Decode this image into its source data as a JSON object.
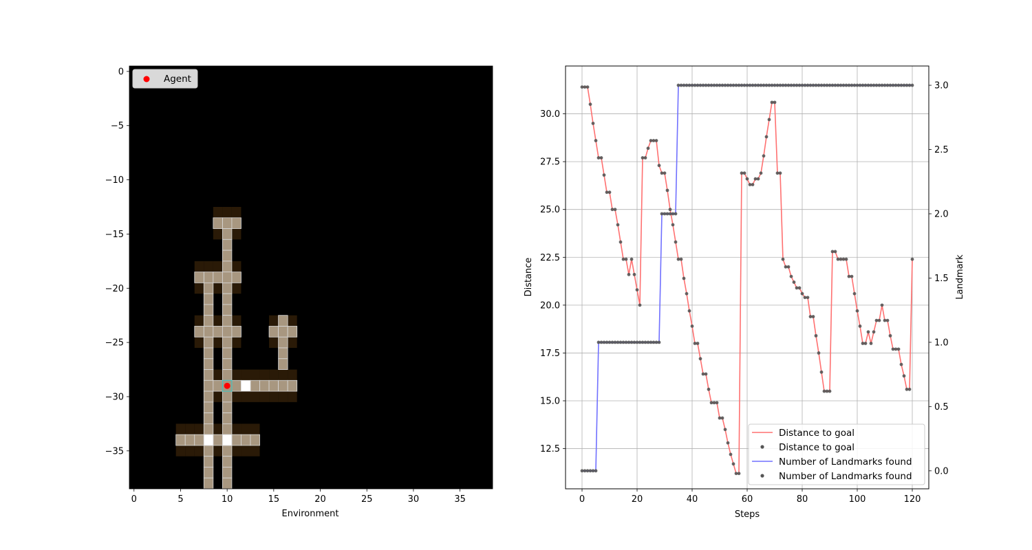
{
  "chart_data": [
    {
      "type": "heatmap",
      "xlabel": "Environment",
      "ylabel": "",
      "xlim": [
        -0.5,
        38.5
      ],
      "ylim": [
        -38.5,
        0.5
      ],
      "xticks": [
        0,
        5,
        10,
        15,
        20,
        25,
        30,
        35
      ],
      "yticks": [
        0,
        -5,
        -10,
        -15,
        -20,
        -25,
        -30,
        -35
      ],
      "xtick_labels": [
        "0",
        "5",
        "10",
        "15",
        "20",
        "25",
        "30",
        "35"
      ],
      "ytick_labels": [
        "0",
        "−5",
        "−10",
        "−15",
        "−20",
        "−25",
        "−30",
        "−35"
      ],
      "grid_color": "#d9d9d9",
      "background_color": "#000000",
      "level_colors": {
        "1": "#2a1a07",
        "2": "#a89780",
        "3": "#ffffff"
      },
      "cells": {
        "dark": [
          [
            9,
            13
          ],
          [
            10,
            13
          ],
          [
            11,
            13
          ],
          [
            9,
            15
          ],
          [
            11,
            15
          ],
          [
            7,
            18
          ],
          [
            8,
            18
          ],
          [
            9,
            18
          ],
          [
            11,
            18
          ],
          [
            7,
            20
          ],
          [
            9,
            20
          ],
          [
            11,
            20
          ],
          [
            7,
            23
          ],
          [
            8,
            23
          ],
          [
            9,
            23
          ],
          [
            11,
            23
          ],
          [
            7,
            25
          ],
          [
            9,
            25
          ],
          [
            11,
            25
          ],
          [
            15,
            23
          ],
          [
            17,
            23
          ],
          [
            15,
            25
          ],
          [
            17,
            25
          ],
          [
            9,
            28
          ],
          [
            11,
            28
          ],
          [
            12,
            28
          ],
          [
            13,
            28
          ],
          [
            14,
            28
          ],
          [
            15,
            28
          ],
          [
            16,
            28
          ],
          [
            17,
            28
          ],
          [
            9,
            30
          ],
          [
            11,
            30
          ],
          [
            12,
            30
          ],
          [
            13,
            30
          ],
          [
            14,
            30
          ],
          [
            15,
            30
          ],
          [
            16,
            30
          ],
          [
            17,
            30
          ],
          [
            5,
            33
          ],
          [
            6,
            33
          ],
          [
            7,
            33
          ],
          [
            9,
            33
          ],
          [
            11,
            33
          ],
          [
            12,
            33
          ],
          [
            13,
            33
          ],
          [
            5,
            35
          ],
          [
            6,
            35
          ],
          [
            7,
            35
          ],
          [
            9,
            35
          ],
          [
            11,
            35
          ],
          [
            12,
            35
          ],
          [
            13,
            35
          ]
        ],
        "path": [
          [
            10,
            14
          ],
          [
            11,
            14
          ],
          [
            9,
            14
          ],
          [
            10,
            15
          ],
          [
            10,
            16
          ],
          [
            10,
            17
          ],
          [
            8,
            19
          ],
          [
            9,
            19
          ],
          [
            10,
            19
          ],
          [
            11,
            19
          ],
          [
            7,
            19
          ],
          [
            10,
            18
          ],
          [
            8,
            20
          ],
          [
            10,
            20
          ],
          [
            8,
            21
          ],
          [
            10,
            21
          ],
          [
            8,
            22
          ],
          [
            10,
            22
          ],
          [
            7,
            24
          ],
          [
            8,
            24
          ],
          [
            9,
            24
          ],
          [
            10,
            24
          ],
          [
            11,
            24
          ],
          [
            8,
            23
          ],
          [
            10,
            23
          ],
          [
            8,
            25
          ],
          [
            10,
            25
          ],
          [
            15,
            24
          ],
          [
            16,
            24
          ],
          [
            17,
            24
          ],
          [
            16,
            23
          ],
          [
            16,
            25
          ],
          [
            16,
            26
          ],
          [
            16,
            27
          ],
          [
            8,
            26
          ],
          [
            10,
            26
          ],
          [
            8,
            27
          ],
          [
            10,
            27
          ],
          [
            8,
            28
          ],
          [
            10,
            28
          ],
          [
            8,
            29
          ],
          [
            9,
            29
          ],
          [
            11,
            29
          ],
          [
            13,
            29
          ],
          [
            14,
            29
          ],
          [
            15,
            29
          ],
          [
            16,
            29
          ],
          [
            17,
            29
          ],
          [
            8,
            30
          ],
          [
            10,
            30
          ],
          [
            8,
            31
          ],
          [
            10,
            31
          ],
          [
            8,
            32
          ],
          [
            10,
            32
          ],
          [
            8,
            33
          ],
          [
            10,
            33
          ],
          [
            5,
            34
          ],
          [
            6,
            34
          ],
          [
            7,
            34
          ],
          [
            9,
            34
          ],
          [
            11,
            34
          ],
          [
            12,
            34
          ],
          [
            13,
            34
          ],
          [
            8,
            35
          ],
          [
            10,
            35
          ],
          [
            8,
            36
          ],
          [
            10,
            36
          ],
          [
            8,
            37
          ],
          [
            10,
            37
          ],
          [
            8,
            38
          ],
          [
            10,
            38
          ]
        ],
        "bright": [
          [
            12,
            29
          ],
          [
            8,
            34
          ],
          [
            10,
            34
          ]
        ],
        "agent_cell": [
          10,
          29
        ]
      },
      "agent": {
        "x": 10,
        "y": -29,
        "color": "#ff0000"
      },
      "legend": {
        "placement": "upper-left",
        "entries": [
          {
            "label": "Agent",
            "marker": "circle",
            "color": "#ff0000"
          }
        ]
      }
    },
    {
      "type": "line",
      "title": "",
      "xlabel": "Steps",
      "ylabel": "Distance",
      "y2label": "Landmark",
      "xlim": [
        -6,
        126
      ],
      "ylim": [
        10.4,
        32.5
      ],
      "y2lim": [
        -0.14,
        3.15
      ],
      "xticks": [
        0,
        20,
        40,
        60,
        80,
        100,
        120
      ],
      "yticks": [
        12.5,
        15.0,
        17.5,
        20.0,
        22.5,
        25.0,
        27.5,
        30.0
      ],
      "y2ticks": [
        0.0,
        0.5,
        1.0,
        1.5,
        2.0,
        2.5,
        3.0
      ],
      "xtick_labels": [
        "0",
        "20",
        "40",
        "60",
        "80",
        "100",
        "120"
      ],
      "ytick_labels": [
        "12.5",
        "15.0",
        "17.5",
        "20.0",
        "22.5",
        "25.0",
        "27.5",
        "30.0"
      ],
      "y2tick_labels": [
        "0.0",
        "0.5",
        "1.0",
        "1.5",
        "2.0",
        "2.5",
        "3.0"
      ],
      "grid": true,
      "legend_placement": "lower-right",
      "series": [
        {
          "name": "Distance to goal",
          "axis": "left",
          "line_color": "#ff7070",
          "marker_color": "#555555",
          "x": [
            0,
            1,
            2,
            3,
            4,
            5,
            6,
            7,
            8,
            9,
            10,
            11,
            12,
            13,
            14,
            15,
            16,
            17,
            18,
            19,
            20,
            21,
            22,
            23,
            24,
            25,
            26,
            27,
            28,
            29,
            30,
            31,
            32,
            33,
            34,
            35,
            36,
            37,
            38,
            39,
            40,
            41,
            42,
            43,
            44,
            45,
            46,
            47,
            48,
            49,
            50,
            51,
            52,
            53,
            54,
            55,
            56,
            57,
            58,
            59,
            60,
            61,
            62,
            63,
            64,
            65,
            66,
            67,
            68,
            69,
            70,
            71,
            72,
            73,
            74,
            75,
            76,
            77,
            78,
            79,
            80,
            81,
            82,
            83,
            84,
            85,
            86,
            87,
            88,
            89,
            90,
            91,
            92,
            93,
            94,
            95,
            96,
            97,
            98,
            99,
            100,
            101,
            102,
            103,
            104,
            105,
            106,
            107,
            108,
            109,
            110,
            111,
            112,
            113,
            114,
            115,
            116,
            117,
            118,
            119,
            120
          ],
          "y": [
            31.4,
            31.4,
            31.4,
            30.5,
            29.5,
            28.6,
            27.7,
            27.7,
            26.8,
            25.9,
            25.9,
            25.0,
            25.0,
            24.2,
            23.3,
            22.4,
            22.4,
            21.6,
            22.4,
            21.6,
            20.8,
            20.0,
            27.7,
            27.7,
            28.2,
            28.6,
            28.6,
            28.6,
            27.3,
            26.9,
            26.9,
            26.0,
            25.0,
            24.2,
            23.3,
            22.4,
            22.4,
            21.4,
            20.6,
            19.7,
            18.9,
            18.0,
            18.0,
            17.2,
            16.4,
            16.4,
            15.6,
            14.9,
            14.9,
            14.9,
            14.1,
            14.1,
            13.5,
            12.8,
            12.2,
            11.7,
            11.2,
            11.2,
            26.9,
            26.9,
            26.6,
            26.3,
            26.3,
            26.6,
            26.6,
            26.9,
            27.8,
            28.8,
            29.7,
            30.6,
            30.6,
            26.9,
            26.9,
            22.4,
            22.0,
            22.0,
            21.5,
            21.2,
            20.9,
            20.9,
            20.6,
            20.4,
            20.4,
            19.4,
            19.4,
            18.4,
            17.5,
            16.5,
            15.5,
            15.5,
            15.5,
            22.8,
            22.8,
            22.4,
            22.4,
            22.4,
            22.4,
            21.5,
            21.5,
            20.6,
            19.7,
            18.9,
            18.0,
            18.0,
            18.6,
            18.0,
            18.6,
            19.2,
            19.2,
            20.0,
            19.2,
            19.2,
            18.4,
            17.7,
            17.7,
            17.7,
            16.9,
            16.3,
            15.6,
            15.6,
            22.4
          ]
        },
        {
          "name": "Number of Landmarks found",
          "axis": "right",
          "line_color": "#7070ff",
          "marker_color": "#555555",
          "x": [
            0,
            1,
            2,
            3,
            4,
            5,
            6,
            7,
            8,
            9,
            10,
            11,
            12,
            13,
            14,
            15,
            16,
            17,
            18,
            19,
            20,
            21,
            22,
            23,
            24,
            25,
            26,
            27,
            28,
            29,
            30,
            31,
            32,
            33,
            34,
            35,
            36,
            37,
            38,
            39,
            40,
            41,
            42,
            43,
            44,
            45,
            46,
            47,
            48,
            49,
            50,
            51,
            52,
            53,
            54,
            55,
            56,
            57,
            58,
            59,
            60,
            61,
            62,
            63,
            64,
            65,
            66,
            67,
            68,
            69,
            70,
            71,
            72,
            73,
            74,
            75,
            76,
            77,
            78,
            79,
            80,
            81,
            82,
            83,
            84,
            85,
            86,
            87,
            88,
            89,
            90,
            91,
            92,
            93,
            94,
            95,
            96,
            97,
            98,
            99,
            100,
            101,
            102,
            103,
            104,
            105,
            106,
            107,
            108,
            109,
            110,
            111,
            112,
            113,
            114,
            115,
            116,
            117,
            118,
            119,
            120
          ],
          "y": [
            0,
            0,
            0,
            0,
            0,
            0,
            1,
            1,
            1,
            1,
            1,
            1,
            1,
            1,
            1,
            1,
            1,
            1,
            1,
            1,
            1,
            1,
            1,
            1,
            1,
            1,
            1,
            1,
            1,
            2,
            2,
            2,
            2,
            2,
            2,
            3,
            3,
            3,
            3,
            3,
            3,
            3,
            3,
            3,
            3,
            3,
            3,
            3,
            3,
            3,
            3,
            3,
            3,
            3,
            3,
            3,
            3,
            3,
            3,
            3,
            3,
            3,
            3,
            3,
            3,
            3,
            3,
            3,
            3,
            3,
            3,
            3,
            3,
            3,
            3,
            3,
            3,
            3,
            3,
            3,
            3,
            3,
            3,
            3,
            3,
            3,
            3,
            3,
            3,
            3,
            3,
            3,
            3,
            3,
            3,
            3,
            3,
            3,
            3,
            3,
            3,
            3,
            3,
            3,
            3,
            3,
            3,
            3,
            3,
            3,
            3,
            3,
            3,
            3,
            3,
            3,
            3,
            3,
            3,
            3,
            3
          ]
        }
      ],
      "legend": {
        "entries": [
          {
            "label": "Distance to goal",
            "kind": "line",
            "color": "#ff7070"
          },
          {
            "label": "Distance to goal",
            "kind": "marker",
            "color": "#555555"
          },
          {
            "label": "Number of Landmarks found",
            "kind": "line",
            "color": "#7070ff"
          },
          {
            "label": "Number of Landmarks found",
            "kind": "marker",
            "color": "#555555"
          }
        ]
      }
    }
  ]
}
